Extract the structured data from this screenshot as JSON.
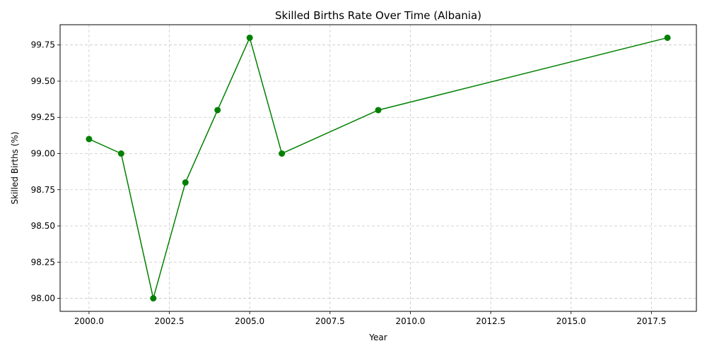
{
  "colors": {
    "line": "#008000",
    "marker": "#008000",
    "grid": "#c8c8c8",
    "axes": "#000000"
  },
  "chart_data": {
    "type": "line",
    "title": "Skilled Births Rate Over Time (Albania)",
    "xlabel": "Year",
    "ylabel": "Skilled Births (%)",
    "xlim": [
      1999.1,
      2018.9
    ],
    "ylim": [
      97.91,
      99.89
    ],
    "x_ticks": [
      2000.0,
      2002.5,
      2005.0,
      2007.5,
      2010.0,
      2012.5,
      2015.0,
      2017.5
    ],
    "x_tick_labels": [
      "2000.0",
      "2002.5",
      "2005.0",
      "2007.5",
      "2010.0",
      "2012.5",
      "2015.0",
      "2017.5"
    ],
    "y_ticks": [
      98.0,
      98.25,
      98.5,
      98.75,
      99.0,
      99.25,
      99.5,
      99.75
    ],
    "y_tick_labels": [
      "98.00",
      "98.25",
      "98.50",
      "98.75",
      "99.00",
      "99.25",
      "99.50",
      "99.75"
    ],
    "grid": true,
    "grid_style": "dashed",
    "marker": "circle",
    "series": [
      {
        "x": [
          2000,
          2001,
          2002,
          2003,
          2004,
          2005,
          2006,
          2009,
          2018
        ],
        "y": [
          99.1,
          99.0,
          98.0,
          98.8,
          99.3,
          99.8,
          99.0,
          99.3,
          99.8
        ]
      }
    ]
  }
}
